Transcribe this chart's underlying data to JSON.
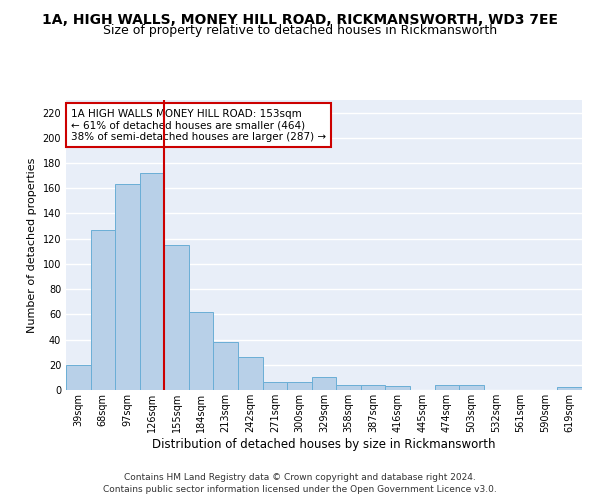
{
  "title1": "1A, HIGH WALLS, MONEY HILL ROAD, RICKMANSWORTH, WD3 7EE",
  "title2": "Size of property relative to detached houses in Rickmansworth",
  "xlabel": "Distribution of detached houses by size in Rickmansworth",
  "ylabel": "Number of detached properties",
  "footer1": "Contains HM Land Registry data © Crown copyright and database right 2024.",
  "footer2": "Contains public sector information licensed under the Open Government Licence v3.0.",
  "categories": [
    "39sqm",
    "68sqm",
    "97sqm",
    "126sqm",
    "155sqm",
    "184sqm",
    "213sqm",
    "242sqm",
    "271sqm",
    "300sqm",
    "329sqm",
    "358sqm",
    "387sqm",
    "416sqm",
    "445sqm",
    "474sqm",
    "503sqm",
    "532sqm",
    "561sqm",
    "590sqm",
    "619sqm"
  ],
  "values": [
    20,
    127,
    163,
    172,
    115,
    62,
    38,
    26,
    6,
    6,
    10,
    4,
    4,
    3,
    0,
    4,
    4,
    0,
    0,
    0,
    2
  ],
  "bar_color": "#b8d0e8",
  "bar_edge_color": "#6aaed6",
  "vline_color": "#cc0000",
  "vline_x_index": 3.5,
  "annotation_text": "1A HIGH WALLS MONEY HILL ROAD: 153sqm\n← 61% of detached houses are smaller (464)\n38% of semi-detached houses are larger (287) →",
  "annotation_box_color": "white",
  "annotation_box_edge": "#cc0000",
  "ylim": [
    0,
    230
  ],
  "yticks": [
    0,
    20,
    40,
    60,
    80,
    100,
    120,
    140,
    160,
    180,
    200,
    220
  ],
  "background_color": "#e8eef8",
  "grid_color": "white",
  "title1_fontsize": 10,
  "title2_fontsize": 9,
  "xlabel_fontsize": 8.5,
  "ylabel_fontsize": 8,
  "tick_fontsize": 7,
  "annotation_fontsize": 7.5,
  "footer_fontsize": 6.5
}
